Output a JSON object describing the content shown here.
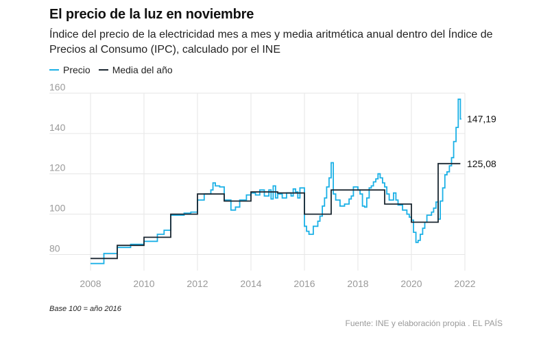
{
  "header": {
    "title": "El precio de la luz en noviembre",
    "subtitle": "Índice del precio de la electricidad mes a mes y media aritmética anual dentro del Índice de Precios al Consumo (IPC), calculado por el INE"
  },
  "footer": {
    "note": "Base 100 = año 2016",
    "source": "Fuente: INE y elaboración propia . EL PAÍS"
  },
  "colors": {
    "precio": "#1ab0e6",
    "media": "#1a2630",
    "grid": "#e6e6e6"
  },
  "chart_data": {
    "type": "line",
    "xlim": [
      2008,
      2022
    ],
    "ylim": [
      72,
      160
    ],
    "x_ticks": [
      {
        "value": 2008,
        "label": "2008"
      },
      {
        "value": 2010,
        "label": "2010"
      },
      {
        "value": 2012,
        "label": "2012"
      },
      {
        "value": 2014,
        "label": "2014"
      },
      {
        "value": 2016,
        "label": "2016"
      },
      {
        "value": 2018,
        "label": "2018"
      },
      {
        "value": 2020,
        "label": "2020"
      },
      {
        "value": 2022,
        "label": "2022"
      }
    ],
    "y_ticks": [
      {
        "value": 80,
        "label": "80"
      },
      {
        "value": 100,
        "label": "100"
      },
      {
        "value": 120,
        "label": "120"
      },
      {
        "value": 140,
        "label": "140"
      },
      {
        "value": 160,
        "label": "160"
      }
    ],
    "grid": "horizontal",
    "legend_position": "top-left",
    "series": [
      {
        "name": "Precio",
        "step": true,
        "end_label": "147,19",
        "points": [
          [
            2008.0,
            75.5
          ],
          [
            2008.5,
            80.5
          ],
          [
            2009.0,
            83.5
          ],
          [
            2009.5,
            85.0
          ],
          [
            2010.0,
            86.5
          ],
          [
            2010.5,
            90.0
          ],
          [
            2010.75,
            92.0
          ],
          [
            2011.0,
            99.5
          ],
          [
            2011.5,
            100.5
          ],
          [
            2011.75,
            101.0
          ],
          [
            2012.0,
            107.0
          ],
          [
            2012.25,
            110.0
          ],
          [
            2012.5,
            112.0
          ],
          [
            2012.58,
            115.5
          ],
          [
            2012.67,
            114.0
          ],
          [
            2012.83,
            113.5
          ],
          [
            2013.0,
            107.0
          ],
          [
            2013.25,
            102.0
          ],
          [
            2013.42,
            103.5
          ],
          [
            2013.58,
            107.0
          ],
          [
            2013.83,
            109.5
          ],
          [
            2014.0,
            110.5
          ],
          [
            2014.17,
            109.5
          ],
          [
            2014.33,
            112.0
          ],
          [
            2014.5,
            109.0
          ],
          [
            2014.67,
            112.0
          ],
          [
            2014.75,
            107.5
          ],
          [
            2014.83,
            114.0
          ],
          [
            2014.92,
            108.0
          ],
          [
            2015.0,
            110.0
          ],
          [
            2015.17,
            108.0
          ],
          [
            2015.33,
            110.5
          ],
          [
            2015.5,
            109.0
          ],
          [
            2015.58,
            112.5
          ],
          [
            2015.67,
            111.0
          ],
          [
            2015.75,
            108.0
          ],
          [
            2015.83,
            113.0
          ],
          [
            2016.0,
            94.0
          ],
          [
            2016.08,
            91.5
          ],
          [
            2016.17,
            90.0
          ],
          [
            2016.33,
            94.0
          ],
          [
            2016.5,
            96.5
          ],
          [
            2016.58,
            99.0
          ],
          [
            2016.67,
            104.0
          ],
          [
            2016.75,
            108.0
          ],
          [
            2016.83,
            113.5
          ],
          [
            2016.92,
            118.0
          ],
          [
            2017.0,
            125.5
          ],
          [
            2017.08,
            110.0
          ],
          [
            2017.17,
            107.0
          ],
          [
            2017.33,
            104.0
          ],
          [
            2017.5,
            105.0
          ],
          [
            2017.67,
            107.5
          ],
          [
            2017.75,
            109.0
          ],
          [
            2017.83,
            113.5
          ],
          [
            2018.0,
            112.0
          ],
          [
            2018.08,
            110.0
          ],
          [
            2018.17,
            104.0
          ],
          [
            2018.25,
            103.5
          ],
          [
            2018.33,
            108.0
          ],
          [
            2018.42,
            113.0
          ],
          [
            2018.5,
            114.0
          ],
          [
            2018.58,
            116.0
          ],
          [
            2018.67,
            117.5
          ],
          [
            2018.75,
            120.0
          ],
          [
            2018.83,
            118.0
          ],
          [
            2018.92,
            115.5
          ],
          [
            2019.0,
            113.5
          ],
          [
            2019.08,
            110.0
          ],
          [
            2019.17,
            107.0
          ],
          [
            2019.33,
            110.5
          ],
          [
            2019.42,
            107.0
          ],
          [
            2019.5,
            104.5
          ],
          [
            2019.67,
            102.0
          ],
          [
            2019.83,
            100.0
          ],
          [
            2019.92,
            98.5
          ],
          [
            2020.0,
            97.0
          ],
          [
            2020.08,
            91.0
          ],
          [
            2020.17,
            86.0
          ],
          [
            2020.25,
            87.0
          ],
          [
            2020.33,
            90.0
          ],
          [
            2020.42,
            93.0
          ],
          [
            2020.5,
            96.0
          ],
          [
            2020.58,
            99.5
          ],
          [
            2020.75,
            101.0
          ],
          [
            2020.83,
            103.0
          ],
          [
            2020.92,
            106.0
          ],
          [
            2021.0,
            97.5
          ],
          [
            2021.08,
            106.5
          ],
          [
            2021.17,
            113.0
          ],
          [
            2021.25,
            119.5
          ],
          [
            2021.33,
            121.0
          ],
          [
            2021.42,
            124.0
          ],
          [
            2021.5,
            128.0
          ],
          [
            2021.58,
            136.0
          ],
          [
            2021.67,
            143.0
          ],
          [
            2021.75,
            157.0
          ],
          [
            2021.83,
            147.19
          ]
        ]
      },
      {
        "name": "Media del año",
        "step": true,
        "end_label": "125,08",
        "points": [
          [
            2008,
            78.0
          ],
          [
            2009,
            84.5
          ],
          [
            2010,
            88.5
          ],
          [
            2011,
            100.0
          ],
          [
            2012,
            110.0
          ],
          [
            2013,
            106.5
          ],
          [
            2014,
            111.0
          ],
          [
            2015,
            110.5
          ],
          [
            2016,
            100.0
          ],
          [
            2017,
            112.0
          ],
          [
            2019,
            105.0
          ],
          [
            2020,
            96.0
          ],
          [
            2021,
            125.08
          ]
        ],
        "end_x": 2021.83
      }
    ]
  }
}
